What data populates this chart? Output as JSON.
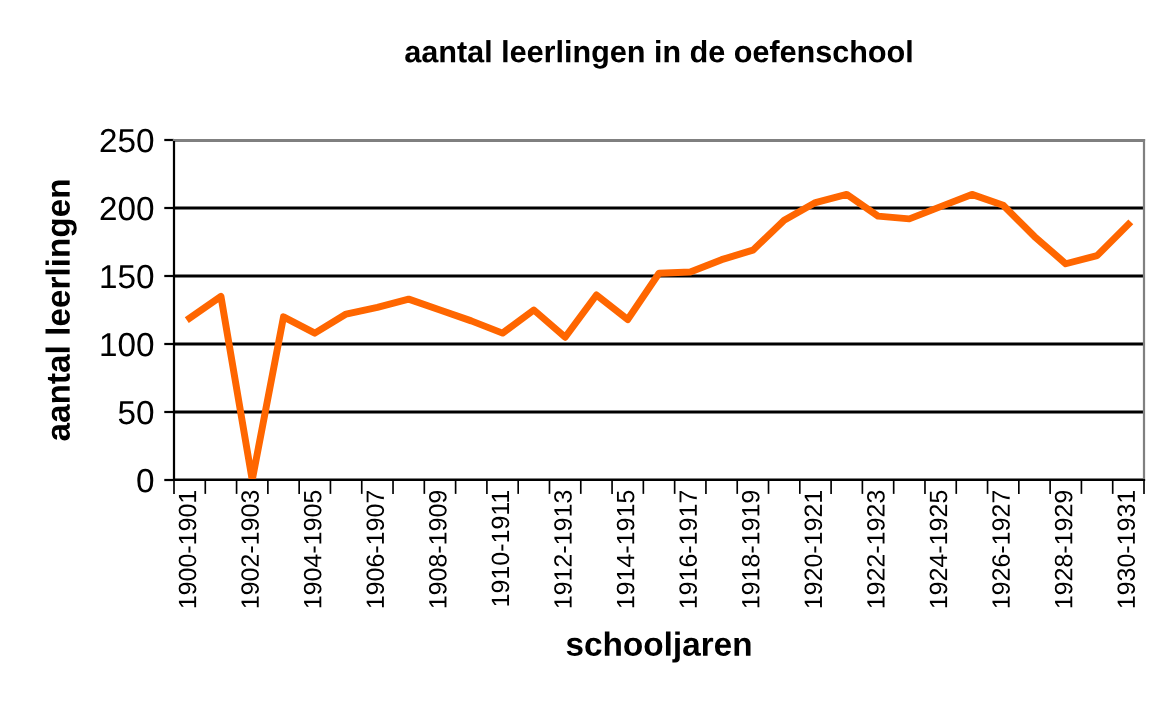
{
  "chart_data": {
    "type": "line",
    "title": "aantal leerlingen in de oefenschool",
    "xlabel": "schooljaren",
    "ylabel": "aantal leerlingen",
    "categories": [
      "1900-1901",
      null,
      "1902-1903",
      null,
      "1904-1905",
      null,
      "1906-1907",
      null,
      "1908-1909",
      null,
      "1910-1911",
      null,
      "1912-1913",
      null,
      "1914-1915",
      null,
      "1916-1917",
      null,
      "1918-1919",
      null,
      "1920-1921",
      null,
      "1922-1923",
      null,
      "1924-1925",
      null,
      "1926-1927",
      null,
      "1928-1929",
      null,
      "1930-1931"
    ],
    "series": [
      {
        "color": "#ff6600",
        "values": [
          119,
          135,
          0,
          120,
          108,
          122,
          127,
          133,
          125,
          117,
          108,
          125,
          105,
          136,
          118,
          152,
          153,
          162,
          169,
          191,
          204,
          210,
          194,
          192,
          201,
          210,
          202,
          179,
          159,
          165,
          188
        ]
      }
    ],
    "ylim": [
      0,
      250
    ],
    "yticks": [
      0,
      50,
      100,
      150,
      200,
      250
    ],
    "grid": "y",
    "legend": false,
    "marker": "none",
    "line_style": "solid"
  }
}
